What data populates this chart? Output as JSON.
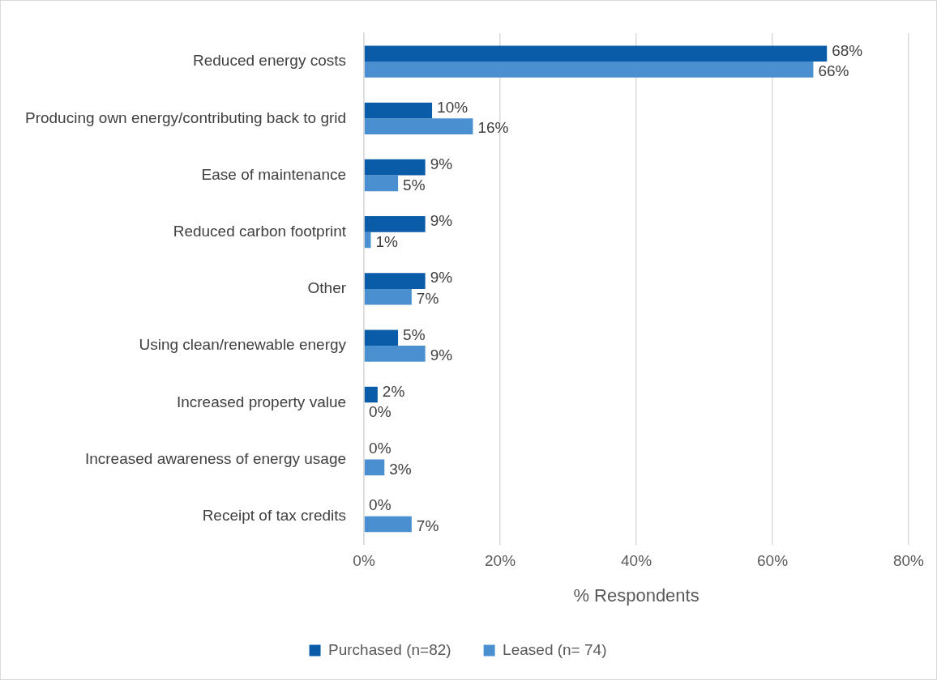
{
  "chart_data": {
    "type": "bar",
    "orientation": "horizontal",
    "xlabel": "% Respondents",
    "categories": [
      "Reduced energy costs",
      "Producing own energy/contributing back to grid",
      "Ease of maintenance",
      "Reduced carbon footprint",
      "Other",
      "Using clean/renewable energy",
      "Increased property value",
      "Increased awareness of energy usage",
      "Receipt of tax credits"
    ],
    "series": [
      {
        "name": "Purchased (n=82)",
        "color": "#0a5ca8",
        "values": [
          68,
          10,
          9,
          9,
          9,
          5,
          2,
          0,
          0
        ],
        "value_labels": [
          "68%",
          "10%",
          "9%",
          "9%",
          "9%",
          "5%",
          "2%",
          "0%",
          "0%"
        ]
      },
      {
        "name": "Leased (n= 74)",
        "color": "#4a90d0",
        "values": [
          66,
          16,
          5,
          1,
          7,
          9,
          0,
          3,
          7
        ],
        "value_labels": [
          "66%",
          "16%",
          "5%",
          "1%",
          "7%",
          "9%",
          "0%",
          "3%",
          "7%"
        ]
      }
    ],
    "xlim": [
      0,
      80
    ],
    "xticks": [
      {
        "value": 0,
        "label": "0%"
      },
      {
        "value": 20,
        "label": "20%"
      },
      {
        "value": 40,
        "label": "40%"
      },
      {
        "value": 60,
        "label": "60%"
      },
      {
        "value": 80,
        "label": "80%"
      }
    ],
    "grid": "x",
    "legend": "bottom"
  }
}
